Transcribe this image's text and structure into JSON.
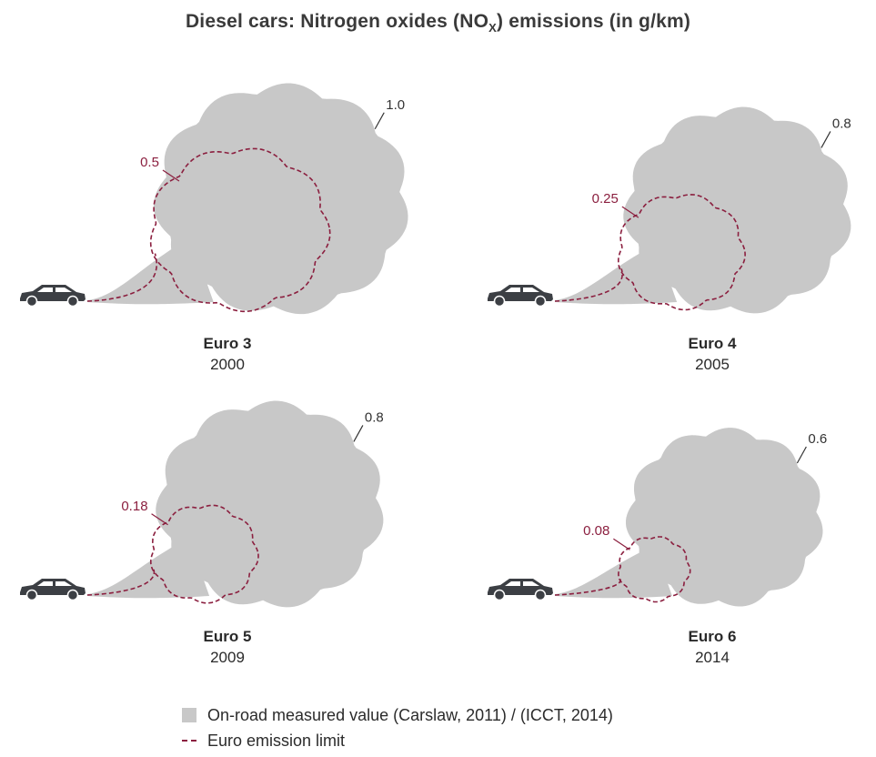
{
  "title": {
    "main": "Diesel cars: Nitrogen oxides (NO",
    "sub": "X",
    "tail": ") emissions (in g/km)"
  },
  "colors": {
    "measured": "#c8c8c8",
    "limit": "#8b1f3f",
    "car": "#3c3f44",
    "leader": "#333333"
  },
  "legend": {
    "measured": "On-road measured value (Carslaw, 2011) / (ICCT, 2014)",
    "limit": "Euro emission limit"
  },
  "chart_data": {
    "type": "bar",
    "unit": "g/km",
    "categories": [
      "Euro 3",
      "Euro 4",
      "Euro 5",
      "Euro 6"
    ],
    "years": [
      "2000",
      "2005",
      "2009",
      "2014"
    ],
    "series": [
      {
        "name": "On-road measured value (Carslaw, 2011) / (ICCT, 2014)",
        "values": [
          1.0,
          0.8,
          0.8,
          0.6
        ]
      },
      {
        "name": "Euro emission limit",
        "values": [
          0.5,
          0.25,
          0.18,
          0.08
        ]
      }
    ],
    "value_labels": {
      "measured": [
        "1.0",
        "0.8",
        "0.8",
        "0.6"
      ],
      "limit": [
        "0.5",
        "0.25",
        "0.18",
        "0.08"
      ]
    }
  }
}
